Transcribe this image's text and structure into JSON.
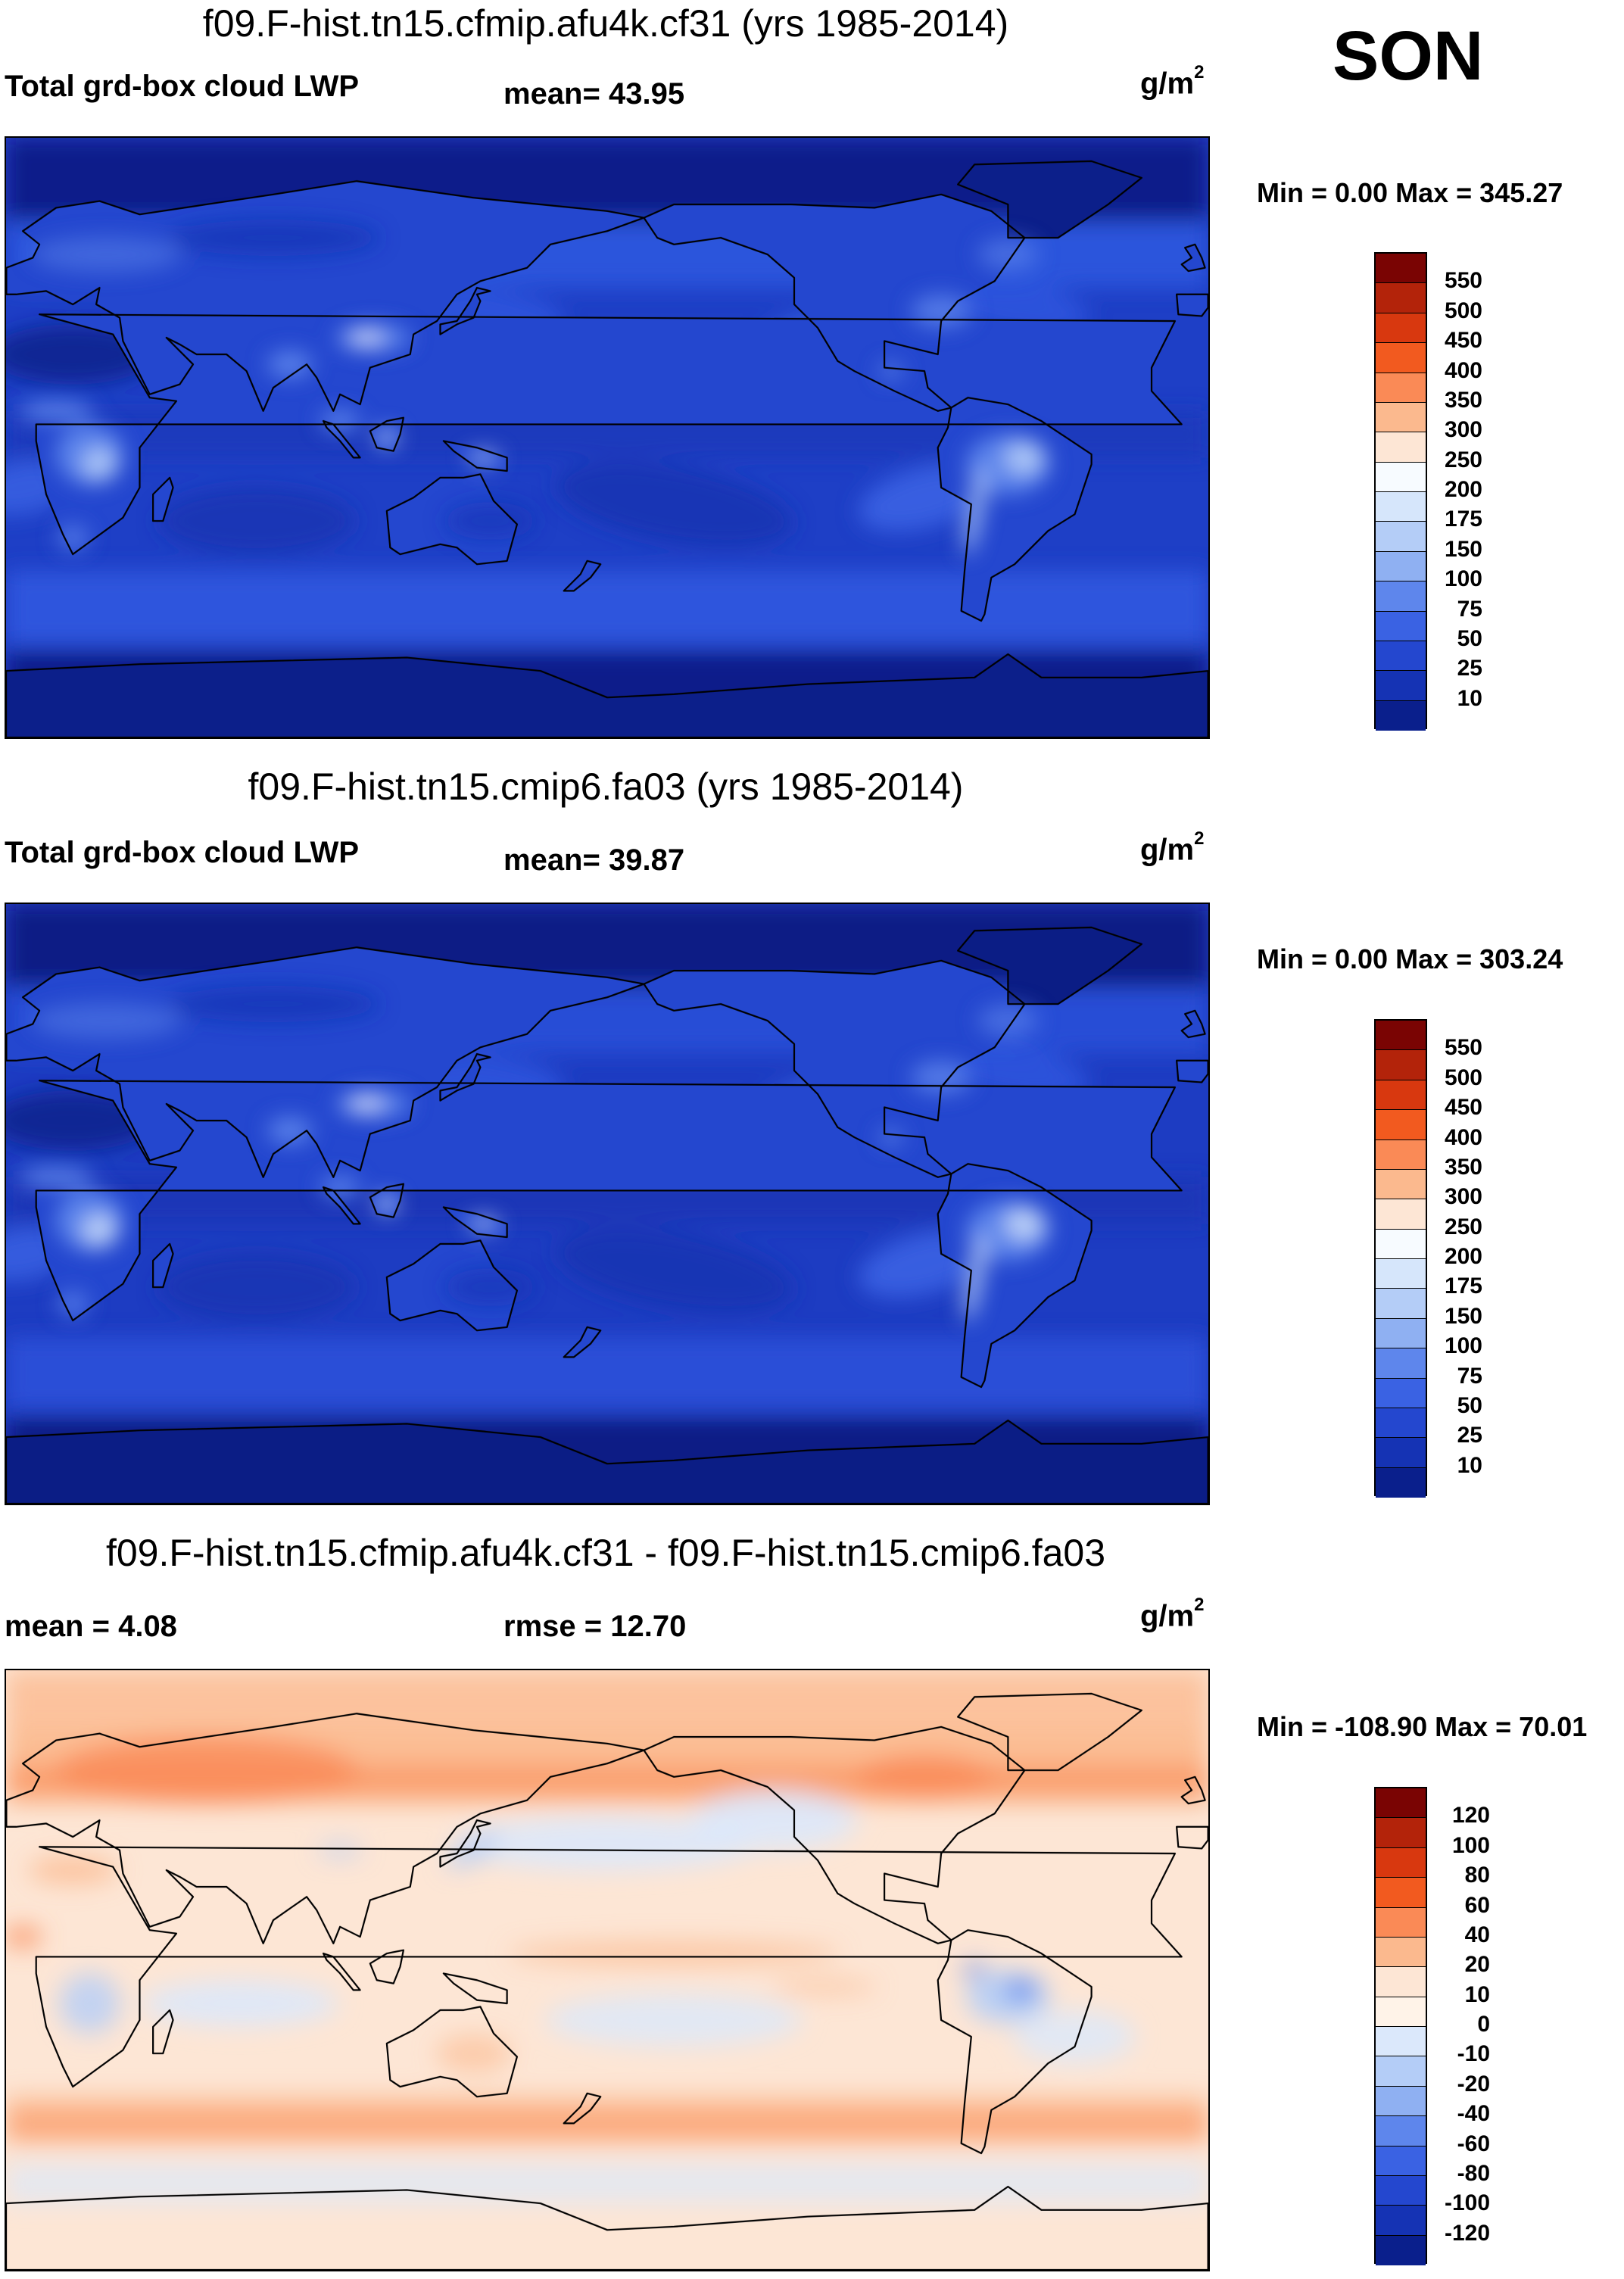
{
  "season": "SON",
  "panels": [
    {
      "title": "f09.F-hist.tn15.cfmip.afu4k.cf31 (yrs 1985-2014)",
      "left_label": "Total grd-box cloud LWP",
      "center_label": "mean=  43.95",
      "unit": "g/m",
      "unit_sup": "2",
      "minmax": "Min =   0.00 Max = 345.27",
      "colorbar_labels": [
        "550",
        "500",
        "450",
        "400",
        "350",
        "300",
        "250",
        "200",
        "175",
        "150",
        "100",
        "75",
        "50",
        "25",
        "10"
      ],
      "colorbar_colors": [
        "#7a0403",
        "#b3230a",
        "#d8380f",
        "#f25a1f",
        "#fa8a56",
        "#fbb98e",
        "#fde6d5",
        "#f7fbff",
        "#d6e6fb",
        "#b4cdf7",
        "#8fb0f2",
        "#5e86ec",
        "#3a62e3",
        "#2447cf",
        "#1533b4",
        "#0a1f8c"
      ],
      "colors": {
        "ocean_base": "#1e3fc6",
        "polar": "#0c1f8a",
        "storm": "#2f56de",
        "trop_ocean": "#1a36b8",
        "land_bright": "#b4cdf7",
        "land_mid": "#5e86ec",
        "land_dark": "#2447cf"
      }
    },
    {
      "title": "f09.F-hist.tn15.cmip6.fa03 (yrs 1985-2014)",
      "left_label": "Total grd-box cloud LWP",
      "center_label": "mean=  39.87",
      "unit": "g/m",
      "unit_sup": "2",
      "minmax": "Min =   0.00 Max = 303.24",
      "colorbar_labels": [
        "550",
        "500",
        "450",
        "400",
        "350",
        "300",
        "250",
        "200",
        "175",
        "150",
        "100",
        "75",
        "50",
        "25",
        "10"
      ],
      "colorbar_colors": [
        "#7a0403",
        "#b3230a",
        "#d8380f",
        "#f25a1f",
        "#fa8a56",
        "#fbb98e",
        "#fde6d5",
        "#f7fbff",
        "#d6e6fb",
        "#b4cdf7",
        "#8fb0f2",
        "#5e86ec",
        "#3a62e3",
        "#2447cf",
        "#1533b4",
        "#0a1f8c"
      ],
      "colors": {
        "ocean_base": "#1d3cc2",
        "polar": "#0b1d85",
        "storm": "#2a50d8",
        "trop_ocean": "#1733b2",
        "land_bright": "#c4d8f8",
        "land_mid": "#5e86ec",
        "land_dark": "#2447cf"
      }
    },
    {
      "title": "f09.F-hist.tn15.cfmip.afu4k.cf31 - f09.F-hist.tn15.cmip6.fa03",
      "left_label": "mean =    4.08",
      "center_label": "rmse =  12.70",
      "unit": "g/m",
      "unit_sup": "2",
      "minmax": "Min = -108.90 Max =  70.01",
      "colorbar_labels": [
        "120",
        "100",
        "80",
        "60",
        "40",
        "20",
        "10",
        "0",
        "-10",
        "-20",
        "-40",
        "-60",
        "-80",
        "-100",
        "-120"
      ],
      "colorbar_colors": [
        "#7a0403",
        "#b3230a",
        "#d8380f",
        "#f25a1f",
        "#fa8a56",
        "#fbb98e",
        "#fde6d5",
        "#fff3e8",
        "#dbe8fb",
        "#b4cdf7",
        "#8fb0f2",
        "#5e86ec",
        "#3a62e3",
        "#2447cf",
        "#1533b4",
        "#0a1f8c"
      ],
      "colors": {
        "base": "#fde6d5",
        "warm": "#fbb98e",
        "warmer": "#fa8a56",
        "cool": "#dbe8fb",
        "cooler": "#b4cdf7",
        "blue": "#5e86ec"
      }
    }
  ]
}
